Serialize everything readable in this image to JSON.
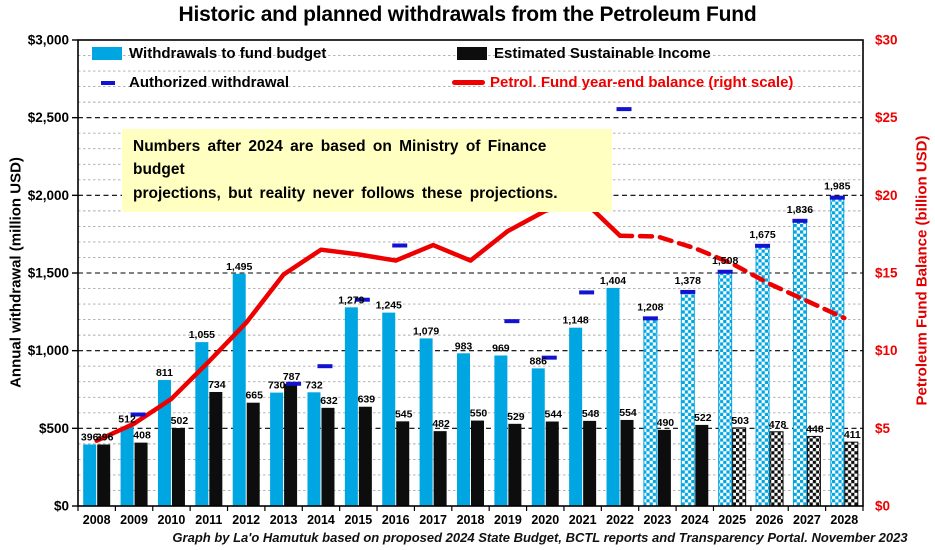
{
  "title": "Historic and planned withdrawals from the Petroleum Fund",
  "footer": "Graph by La'o Hamutuk based on proposed 2024 State Budget, BCTL reports and Transparency Portal. November 2023",
  "annotation": {
    "line1": "Numbers after 2024 are based on Ministry of Finance budget",
    "line2": "projections,  but reality never follows these projections."
  },
  "legend": {
    "withdrawals": "Withdrawals to fund budget",
    "esi": "Estimated Sustainable Income",
    "authorized": "Authorized withdrawal",
    "balance": "Petrol. Fund year-end balance (right scale)"
  },
  "axes": {
    "left_title": "Annual withdrawal (million USD)",
    "right_title": "Petroleum Fund Balance (billion USD)",
    "left_ticks": [
      {
        "label": "$3,000",
        "value": 3000
      },
      {
        "label": "$2,500",
        "value": 2500
      },
      {
        "label": "$2,000",
        "value": 2000
      },
      {
        "label": "$1,500",
        "value": 1500
      },
      {
        "label": "$1,000",
        "value": 1000
      },
      {
        "label": "$500",
        "value": 500
      },
      {
        "label": "$0",
        "value": 0
      }
    ],
    "right_ticks": [
      {
        "label": "$30",
        "value": 30
      },
      {
        "label": "$25",
        "value": 25
      },
      {
        "label": "$20",
        "value": 20
      },
      {
        "label": "$15",
        "value": 15
      },
      {
        "label": "$10",
        "value": 10
      },
      {
        "label": "$5",
        "value": 5
      },
      {
        "label": "$0",
        "value": 0
      }
    ]
  },
  "colors": {
    "blue": "#00A6E2",
    "black": "#0D0D0D",
    "authorized": "#1212D0",
    "red": "#EE0000",
    "annotation_bg": "#FFFFC2",
    "grid_major": "#000000",
    "grid_minor": "#A9A9A9"
  },
  "chart_data": {
    "type": "bar+line",
    "title": "Historic and planned withdrawals from the Petroleum Fund",
    "categories": [
      "2008",
      "2009",
      "2010",
      "2011",
      "2012",
      "2013",
      "2014",
      "2015",
      "2016",
      "2017",
      "2018",
      "2019",
      "2020",
      "2021",
      "2022",
      "2023",
      "2024",
      "2025",
      "2026",
      "2027",
      "2028"
    ],
    "ylim_left": [
      0,
      3000
    ],
    "ylim_right": [
      0,
      30
    ],
    "grid": {
      "major_interval": 500,
      "minor_interval": 100
    },
    "series": [
      {
        "name": "Withdrawals to fund budget",
        "type": "bar",
        "axis": "left",
        "projected_pattern_from": "2023",
        "values": [
          396,
          512,
          811,
          1055,
          1495,
          730,
          732,
          1279,
          1245,
          1079,
          983,
          969,
          886,
          1148,
          1404,
          1208,
          1378,
          1508,
          1675,
          1836,
          1985
        ]
      },
      {
        "name": "Estimated Sustainable Income",
        "type": "bar",
        "axis": "left",
        "projected_pattern_from": "2025",
        "values": [
          396,
          408,
          502,
          734,
          665,
          787,
          632,
          639,
          545,
          482,
          550,
          529,
          544,
          548,
          554,
          490,
          522,
          503,
          478,
          448,
          411
        ]
      },
      {
        "name": "Authorized withdrawal",
        "type": "tick-marker",
        "axis": "left",
        "values": [
          null,
          589,
          null,
          null,
          null,
          787,
          900,
          1328,
          1677,
          null,
          null,
          1190,
          955,
          1375,
          2555,
          1208,
          1378,
          1508,
          1675,
          1836,
          1985
        ]
      },
      {
        "name": "Petrol. Fund year-end balance (right scale)",
        "type": "line",
        "axis": "right",
        "dashed_from": "2022",
        "values": [
          4.2,
          5.3,
          6.9,
          9.3,
          11.8,
          14.9,
          16.5,
          16.2,
          15.8,
          16.8,
          15.8,
          17.7,
          19.0,
          19.7,
          17.4,
          17.35,
          16.6,
          15.6,
          14.3,
          13.2,
          12.1
        ]
      }
    ]
  }
}
